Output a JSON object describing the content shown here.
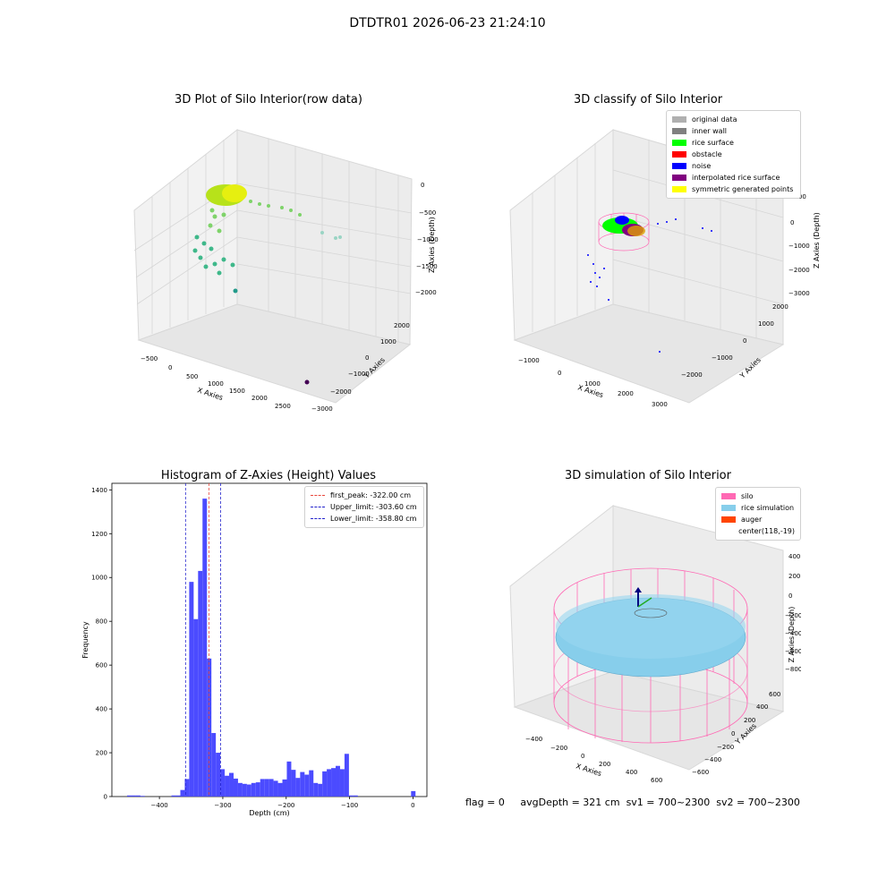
{
  "header": {
    "title": "DTDTR01 2026-06-23 21:24:10"
  },
  "status": {
    "flag": "flag = 0",
    "avg_depth": "avgDepth = 321 cm",
    "sv1": "sv1 = 700~2300",
    "sv2": "sv2 = 700~2300"
  },
  "colors": {
    "histogram_bar": "#4b4bff",
    "peak_line": "#e8463c",
    "limit_line": "#2222cc",
    "silo_pink": "#ff69b4",
    "rice_blue": "#87ceeb",
    "auger_orange": "#ff4500"
  },
  "chart_data": [
    {
      "type": "scatter",
      "title": "3D Plot of Silo Interior(row data)",
      "xlabel": "X Axies",
      "ylabel": "Y Axies",
      "zlabel": "Z Axies (Depth)",
      "x_ticks": [
        "−500",
        "0",
        "500",
        "1000",
        "1500",
        "2000",
        "2500"
      ],
      "y_ticks": [
        "−3000",
        "−2000",
        "−1000",
        "0",
        "1000",
        "2000"
      ],
      "z_ticks": [
        "0",
        "−500",
        "−1000",
        "−1500",
        "−2000"
      ]
    },
    {
      "type": "scatter",
      "title": "3D classify of Silo Interior",
      "xlabel": "X Axies",
      "ylabel": "Y Axies",
      "zlabel": "Z Axies (Depth)",
      "x_ticks": [
        "−1000",
        "0",
        "1000",
        "2000",
        "3000"
      ],
      "y_ticks": [
        "−2000",
        "−1000",
        "0",
        "1000",
        "2000"
      ],
      "z_ticks": [
        "1000",
        "0",
        "−1000",
        "−2000",
        "−3000"
      ],
      "legend": [
        {
          "label": "original data",
          "color": "#b0b0b0"
        },
        {
          "label": "inner wall",
          "color": "#808080"
        },
        {
          "label": "rice surface",
          "color": "#00ff00"
        },
        {
          "label": "obstacle",
          "color": "#ff0000"
        },
        {
          "label": "noise",
          "color": "#0000ff"
        },
        {
          "label": "interpolated rice surface",
          "color": "#800080"
        },
        {
          "label": "symmetric generated points",
          "color": "#ffff00"
        }
      ]
    },
    {
      "type": "bar",
      "title": "Histogram of Z-Axies (Height) Values",
      "xlabel": "Depth (cm)",
      "ylabel": "Frequency",
      "xlim": [
        -475,
        22
      ],
      "ylim": [
        0,
        1430
      ],
      "x_ticks": [
        -400,
        -300,
        -200,
        -100,
        0
      ],
      "x_tick_labels": [
        "−400",
        "−300",
        "−200",
        "−100",
        "0"
      ],
      "y_ticks": [
        0,
        200,
        400,
        600,
        800,
        1000,
        1200,
        1400
      ],
      "bin_width": 7,
      "bins": [
        {
          "x": -451,
          "v": 5
        },
        {
          "x": -444,
          "v": 5
        },
        {
          "x": -437,
          "v": 5
        },
        {
          "x": -430,
          "v": 3
        },
        {
          "x": -381,
          "v": 5
        },
        {
          "x": -374,
          "v": 5
        },
        {
          "x": -367,
          "v": 30
        },
        {
          "x": -360,
          "v": 80
        },
        {
          "x": -353,
          "v": 980
        },
        {
          "x": -346,
          "v": 810
        },
        {
          "x": -339,
          "v": 1030
        },
        {
          "x": -332,
          "v": 1360
        },
        {
          "x": -325,
          "v": 630
        },
        {
          "x": -318,
          "v": 290
        },
        {
          "x": -311,
          "v": 200
        },
        {
          "x": -304,
          "v": 125
        },
        {
          "x": -297,
          "v": 95
        },
        {
          "x": -290,
          "v": 108
        },
        {
          "x": -283,
          "v": 82
        },
        {
          "x": -276,
          "v": 62
        },
        {
          "x": -269,
          "v": 58
        },
        {
          "x": -262,
          "v": 55
        },
        {
          "x": -255,
          "v": 62
        },
        {
          "x": -248,
          "v": 65
        },
        {
          "x": -241,
          "v": 80
        },
        {
          "x": -234,
          "v": 80
        },
        {
          "x": -227,
          "v": 80
        },
        {
          "x": -220,
          "v": 72
        },
        {
          "x": -213,
          "v": 62
        },
        {
          "x": -206,
          "v": 78
        },
        {
          "x": -199,
          "v": 160
        },
        {
          "x": -192,
          "v": 122
        },
        {
          "x": -185,
          "v": 85
        },
        {
          "x": -178,
          "v": 112
        },
        {
          "x": -171,
          "v": 100
        },
        {
          "x": -164,
          "v": 120
        },
        {
          "x": -157,
          "v": 62
        },
        {
          "x": -150,
          "v": 58
        },
        {
          "x": -143,
          "v": 115
        },
        {
          "x": -136,
          "v": 125
        },
        {
          "x": -129,
          "v": 130
        },
        {
          "x": -122,
          "v": 140
        },
        {
          "x": -115,
          "v": 125
        },
        {
          "x": -108,
          "v": 195
        },
        {
          "x": -101,
          "v": 5
        },
        {
          "x": -94,
          "v": 5
        },
        {
          "x": -3,
          "v": 25
        }
      ],
      "lines": [
        {
          "label": "first_peak: -322.00 cm",
          "x": -322.0,
          "color": "#e8463c"
        },
        {
          "label": "Upper_limit: -303.60 cm",
          "x": -303.6,
          "color": "#2222cc"
        },
        {
          "label": "Lower_limit: -358.80 cm",
          "x": -358.8,
          "color": "#2222cc"
        }
      ]
    },
    {
      "type": "scatter",
      "title": "3D simulation of Silo Interior",
      "xlabel": "X Axies",
      "ylabel": "Y Axies",
      "zlabel": "Z Axies (Depth)",
      "x_ticks": [
        "−400",
        "−200",
        "0",
        "200",
        "400",
        "600"
      ],
      "y_ticks": [
        "−600",
        "−400",
        "−200",
        "0",
        "200",
        "400",
        "600"
      ],
      "z_ticks": [
        "400",
        "200",
        "0",
        "−200",
        "−400",
        "−600",
        "−800"
      ],
      "legend": [
        {
          "label": "silo",
          "color": "#ff69b4"
        },
        {
          "label": "rice simulation",
          "color": "#87ceeb"
        },
        {
          "label": "auger",
          "color": "#ff4500"
        },
        {
          "label": "center(118,-19)",
          "color": ""
        }
      ]
    }
  ]
}
